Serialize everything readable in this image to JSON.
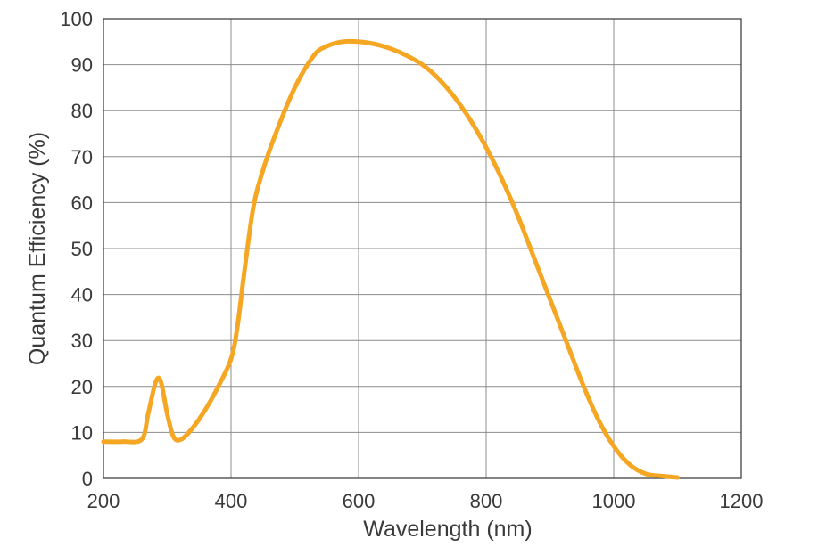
{
  "chart_data": {
    "type": "line",
    "xlabel": "Wavelength (nm)",
    "ylabel": "Quantum Efficiency (%)",
    "xlim": [
      200,
      1200
    ],
    "ylim": [
      0,
      100
    ],
    "x_ticks": [
      200,
      400,
      600,
      800,
      1000,
      1200
    ],
    "y_ticks": [
      0,
      10,
      20,
      30,
      40,
      50,
      60,
      70,
      80,
      90,
      100
    ],
    "grid": true,
    "series": [
      {
        "color": "#f5a623",
        "x": [
          200,
          230,
          260,
          270,
          282,
          290,
          300,
          310,
          322,
          340,
          360,
          380,
          400,
          410,
          420,
          435,
          450,
          470,
          500,
          530,
          550,
          575,
          600,
          625,
          650,
          675,
          700,
          725,
          750,
          775,
          800,
          825,
          850,
          875,
          900,
          925,
          950,
          975,
          1000,
          1025,
          1050,
          1075,
          1100
        ],
        "y": [
          8,
          8,
          8.5,
          14,
          21,
          21,
          14,
          9,
          8.5,
          11,
          15,
          20,
          26,
          33,
          44,
          59,
          67,
          75,
          85,
          92,
          94,
          95,
          95,
          94.5,
          93.5,
          92,
          90,
          87,
          83,
          78,
          72,
          65,
          57,
          48,
          39,
          30,
          21,
          13,
          7,
          3,
          1,
          0.5,
          0.2
        ]
      }
    ]
  }
}
